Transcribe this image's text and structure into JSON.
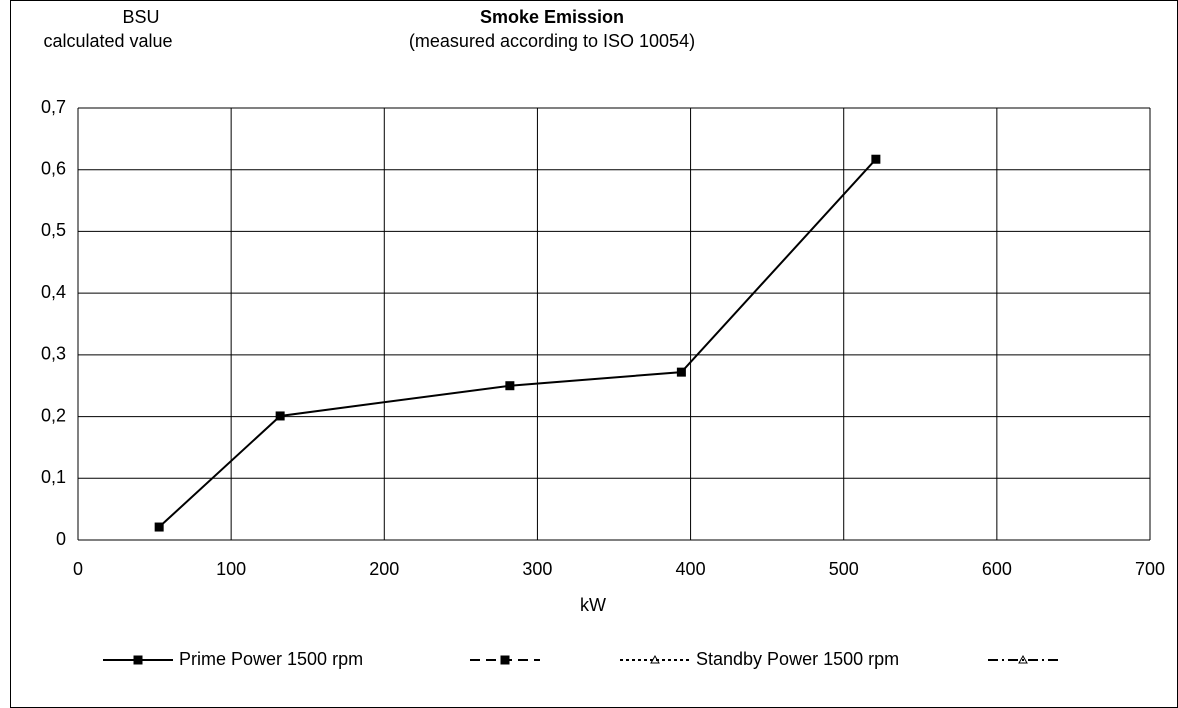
{
  "chart_data": {
    "type": "line",
    "title": "Smoke Emission",
    "subtitle": "(measured according to ISO 10054)",
    "ylabel": [
      "BSU",
      "calculated value"
    ],
    "xlabel": "kW",
    "x": [
      53,
      132,
      282,
      394,
      521
    ],
    "series": [
      {
        "name": "Prime Power  1500 rpm",
        "color": "#000000",
        "dash": "solid",
        "marker": "square",
        "values": [
          0.021,
          0.201,
          0.25,
          0.272,
          0.617
        ]
      },
      {
        "name": null,
        "color": "#000000",
        "dash": "dashed",
        "marker": "square",
        "values": [
          null,
          null,
          null,
          null,
          null
        ]
      },
      {
        "name": "Standby Power  1500 rpm",
        "color": "#000000",
        "dash": "dotted",
        "marker": "triangle",
        "values": [
          null,
          null,
          null,
          null,
          null
        ]
      },
      {
        "name": null,
        "color": "#000000",
        "dash": "dashdot",
        "marker": "triangle",
        "values": [
          null,
          null,
          null,
          null,
          null
        ]
      }
    ],
    "xlim": [
      0,
      700
    ],
    "xticks": [
      0,
      100,
      200,
      300,
      400,
      500,
      600,
      700
    ],
    "ylim": [
      0,
      0.7
    ],
    "yticks": [
      0,
      {
        "value": 0.1,
        "label": "0,1"
      },
      {
        "value": 0.2,
        "label": "0,2"
      },
      {
        "value": 0.3,
        "label": "0,3"
      },
      {
        "value": 0.4,
        "label": "0,4"
      },
      {
        "value": 0.5,
        "label": "0,5"
      },
      {
        "value": 0.6,
        "label": "0,6"
      },
      {
        "value": 0.7,
        "label": "0,7"
      }
    ],
    "grid": true,
    "legend": "bottom"
  }
}
